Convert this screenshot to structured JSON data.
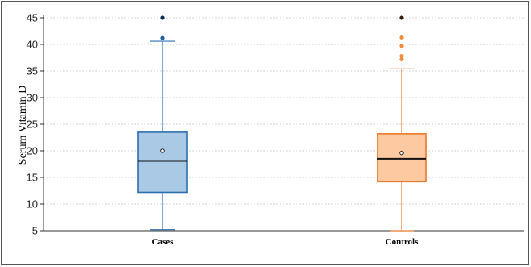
{
  "chart_data": {
    "type": "box",
    "title": "",
    "xlabel": "",
    "ylabel": "Serum Vitamin D",
    "ylim": [
      5,
      45
    ],
    "yticks": [
      5,
      10,
      15,
      20,
      25,
      30,
      35,
      40,
      45
    ],
    "grid": true,
    "categories": [
      "Cases",
      "Controls"
    ],
    "series": [
      {
        "category": "Cases",
        "min": 5.2,
        "q1": 12.2,
        "median": 18.1,
        "q3": 23.5,
        "max": 40.6,
        "mean": 20.0,
        "outliers": [
          41.2,
          45.0
        ],
        "fill": "#a9c9e5",
        "stroke": "#2b6fae",
        "outlier_color": "#1f5f9e"
      },
      {
        "category": "Controls",
        "min": 5.0,
        "q1": 14.2,
        "median": 18.5,
        "q3": 23.2,
        "max": 35.4,
        "mean": 19.6,
        "outliers": [
          37.2,
          37.8,
          39.7,
          41.3,
          45.0
        ],
        "fill": "#fcc9a0",
        "stroke": "#e8782c",
        "outlier_color": "#f08a3c"
      }
    ]
  }
}
